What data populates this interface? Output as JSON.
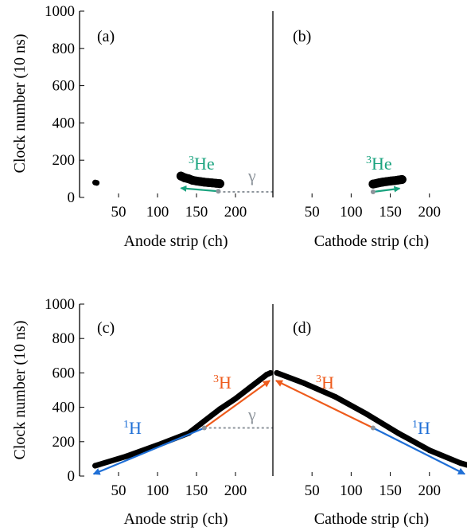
{
  "colors": {
    "he3": "#1aa37f",
    "h1": "#1f6fd6",
    "h3": "#ee5b1c",
    "gamma": "#8e959c",
    "track": "#000000"
  },
  "ylabel": "Clock number (10 ns)",
  "yticks": [
    "0",
    "200",
    "400",
    "600",
    "800",
    "1000"
  ],
  "xticks": [
    "50",
    "100",
    "150",
    "200"
  ],
  "panels": [
    {
      "label": "(a)",
      "xlabel": "Anode strip (ch)"
    },
    {
      "label": "(b)",
      "xlabel": "Cathode strip (ch)"
    },
    {
      "label": "(c)",
      "xlabel": "Anode strip (ch)"
    },
    {
      "label": "(d)",
      "xlabel": "Cathode strip (ch)"
    }
  ],
  "annotations": {
    "he3_a": {
      "sup": "3",
      "text": "He"
    },
    "he3_b": {
      "sup": "3",
      "text": "He"
    },
    "gamma_a": "γ",
    "h3_c": {
      "sup": "3",
      "text": "H"
    },
    "h1_c": {
      "sup": "1",
      "text": "H"
    },
    "gamma_c": "γ",
    "h3_d": {
      "sup": "3",
      "text": "H"
    },
    "h1_d": {
      "sup": "1",
      "text": "H"
    }
  },
  "chart_data": [
    {
      "type": "scatter",
      "label": "(a)",
      "xlabel": "Anode strip (ch)",
      "ylabel": "Clock number (10 ns)",
      "ylim": [
        0,
        1000
      ],
      "tracks": [
        {
          "name": "3He",
          "x": [
            130,
            135,
            140,
            145,
            150,
            155,
            160,
            165,
            170,
            175,
            180
          ],
          "y": [
            115,
            105,
            100,
            92,
            88,
            85,
            82,
            80,
            78,
            76,
            74
          ]
        },
        {
          "name": "",
          "x": [
            20,
            22
          ],
          "y": [
            80,
            78
          ]
        }
      ],
      "arrows": [
        {
          "name": "3He",
          "from": [
            178,
            33
          ],
          "to": [
            130,
            50
          ]
        }
      ],
      "gamma_line": {
        "y": 30,
        "x": [
          178,
          248
        ]
      }
    },
    {
      "type": "scatter",
      "label": "(b)",
      "xlabel": "Cathode strip (ch)",
      "ylim": [
        0,
        1000
      ],
      "tracks": [
        {
          "name": "3He",
          "x": [
            128,
            135,
            140,
            145,
            150,
            155,
            160,
            165
          ],
          "y": [
            72,
            78,
            82,
            85,
            88,
            90,
            93,
            96
          ]
        }
      ],
      "arrows": [
        {
          "name": "3He",
          "from": [
            128,
            30
          ],
          "to": [
            162,
            48
          ]
        }
      ]
    },
    {
      "type": "scatter",
      "label": "(c)",
      "xlabel": "Anode strip (ch)",
      "ylabel": "Clock number (10 ns)",
      "ylim": [
        0,
        1000
      ],
      "tracks": [
        {
          "name": "1H+3H",
          "x": [
            20,
            60,
            100,
            140,
            160,
            180,
            200,
            220,
            240,
            245
          ],
          "y": [
            60,
            115,
            180,
            250,
            320,
            390,
            450,
            520,
            590,
            600
          ]
        }
      ],
      "arrows": [
        {
          "name": "1H",
          "from": [
            160,
            280
          ],
          "to": [
            18,
            12
          ]
        },
        {
          "name": "3H",
          "from": [
            160,
            280
          ],
          "to": [
            244,
            555
          ]
        }
      ],
      "gamma_line": {
        "y": 280,
        "x": [
          160,
          248
        ]
      }
    },
    {
      "type": "scatter",
      "label": "(d)",
      "xlabel": "Cathode strip (ch)",
      "ylim": [
        0,
        1000
      ],
      "tracks": [
        {
          "name": "1H+3H",
          "x": [
            5,
            40,
            80,
            120,
            160,
            200,
            240,
            248
          ],
          "y": [
            600,
            540,
            460,
            360,
            250,
            150,
            75,
            65
          ]
        }
      ],
      "arrows": [
        {
          "name": "3H",
          "from": [
            128,
            280
          ],
          "to": [
            4,
            555
          ]
        },
        {
          "name": "1H",
          "from": [
            128,
            280
          ],
          "to": [
            245,
            12
          ]
        }
      ]
    }
  ]
}
